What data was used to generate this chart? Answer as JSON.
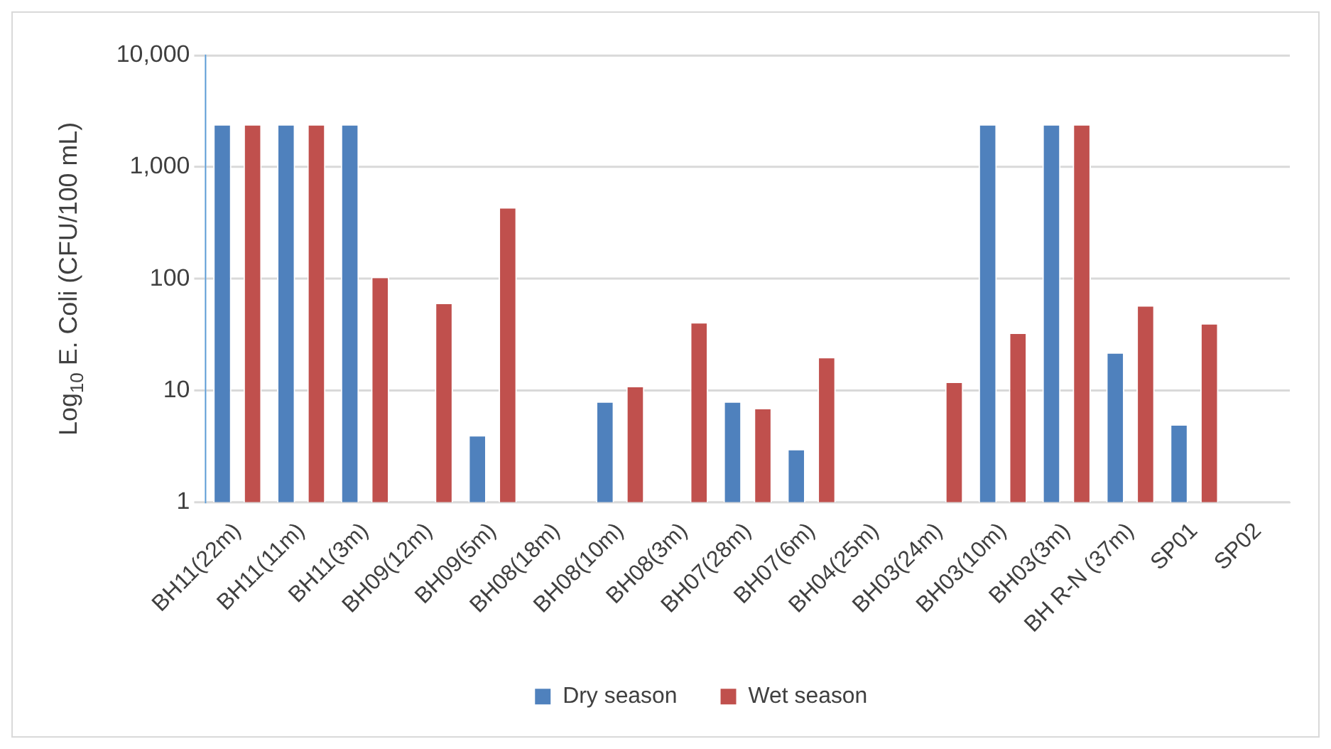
{
  "chart_data": {
    "type": "bar",
    "ylabel": "Log$_{10}$ E. Coli (CFU/100 mL)",
    "categories": [
      "BH11(22m)",
      "BH11(11m)",
      "BH11(3m)",
      "BH09(12m)",
      "BH09(5m)",
      "BH08(18m)",
      "BH08(10m)",
      "BH08(3m)",
      "BH07(28m)",
      "BH07(6m)",
      "BH04(25m)",
      "BH03(24m)",
      "BH03(10m)",
      "BH03(3m)",
      "BH R-N (37m)",
      "SP01",
      "SP02"
    ],
    "series": [
      {
        "name": "Dry season",
        "color": "#4f81bd",
        "values": [
          2420,
          2420,
          2420,
          null,
          4,
          null,
          8,
          null,
          8,
          3,
          null,
          null,
          2420,
          2420,
          22,
          5,
          null
        ]
      },
      {
        "name": "Wet season",
        "color": "#c0504d",
        "values": [
          2420,
          2420,
          104,
          61,
          437,
          null,
          11,
          41,
          7,
          20,
          null,
          12,
          33,
          2420,
          58,
          40,
          null
        ]
      }
    ],
    "log": "y",
    "ylim": [
      1,
      10000
    ],
    "yticks": [
      1,
      10,
      100,
      {
        "value": 1000,
        "label": "1,000"
      },
      {
        "value": 10000,
        "label": "10,000"
      }
    ],
    "grid": "y",
    "legend": "bottom"
  }
}
